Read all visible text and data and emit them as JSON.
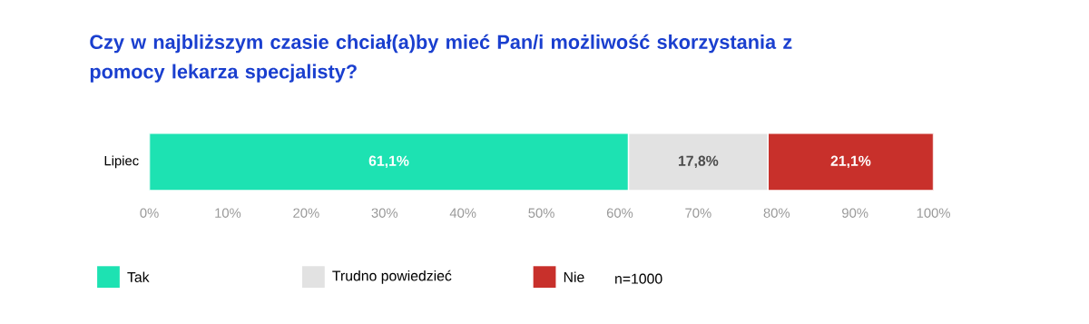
{
  "chart_data": {
    "type": "bar",
    "orientation": "horizontal",
    "stacked": true,
    "title": "Czy w najbliższym czasie chciał(a)by mieć Pan/i możliwość skorzystania z pomocy lekarza specjalisty?",
    "categories": [
      "Lipiec"
    ],
    "series": [
      {
        "name": "Tak",
        "color": "#1de2b2",
        "values": [
          61.1
        ],
        "value_labels": [
          "61,1%"
        ]
      },
      {
        "name": "Trudno powiedzieć",
        "color": "#e2e2e2",
        "values": [
          17.8
        ],
        "value_labels": [
          "17,8%"
        ]
      },
      {
        "name": "Nie",
        "color": "#c8302b",
        "values": [
          21.1
        ],
        "value_labels": [
          "21,1%"
        ]
      }
    ],
    "xlim": [
      0,
      100
    ],
    "xticks": [
      {
        "value": 0,
        "label": "0%"
      },
      {
        "value": 10,
        "label": "10%"
      },
      {
        "value": 20,
        "label": "20%"
      },
      {
        "value": 30,
        "label": "30%"
      },
      {
        "value": 40,
        "label": "40%"
      },
      {
        "value": 50,
        "label": "50%"
      },
      {
        "value": 60,
        "label": "60%"
      },
      {
        "value": 70,
        "label": "70%"
      },
      {
        "value": 80,
        "label": "80%"
      },
      {
        "value": 90,
        "label": "90%"
      },
      {
        "value": 100,
        "label": "100%"
      }
    ],
    "grid": false,
    "legend": "bottom",
    "annotations": [
      "n=1000"
    ]
  }
}
